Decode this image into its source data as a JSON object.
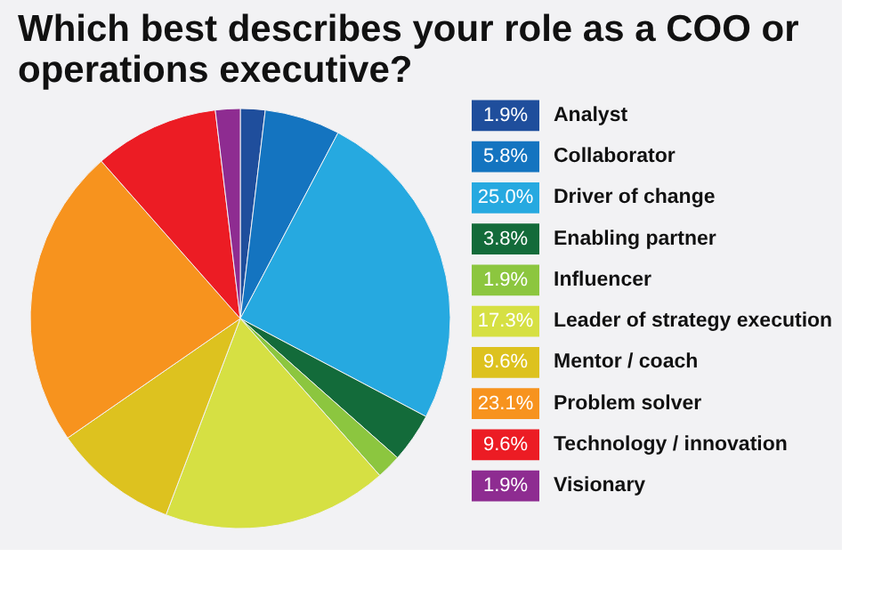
{
  "chart_data": {
    "type": "pie",
    "title": "Which best describes your role as a COO or operations executive?",
    "categories": [
      "Analyst",
      "Collaborator",
      "Driver of change",
      "Enabling partner",
      "Influencer",
      "Leader of strategy execution",
      "Mentor / coach",
      "Problem solver",
      "Technology / innovation",
      "Visionary"
    ],
    "values": [
      1.9,
      5.8,
      25.0,
      3.8,
      1.9,
      17.3,
      9.6,
      23.1,
      9.6,
      1.9
    ],
    "value_labels": [
      "1.9%",
      "5.8%",
      "25.0%",
      "3.8%",
      "1.9%",
      "17.3%",
      "9.6%",
      "23.1%",
      "9.6%",
      "1.9%"
    ],
    "colors": [
      "#1f4e9c",
      "#1474c0",
      "#26a9e0",
      "#136b3a",
      "#8cc63f",
      "#d6e043",
      "#ddc21f",
      "#f7931e",
      "#ec1c24",
      "#8e2c91"
    ],
    "legend": "right"
  }
}
